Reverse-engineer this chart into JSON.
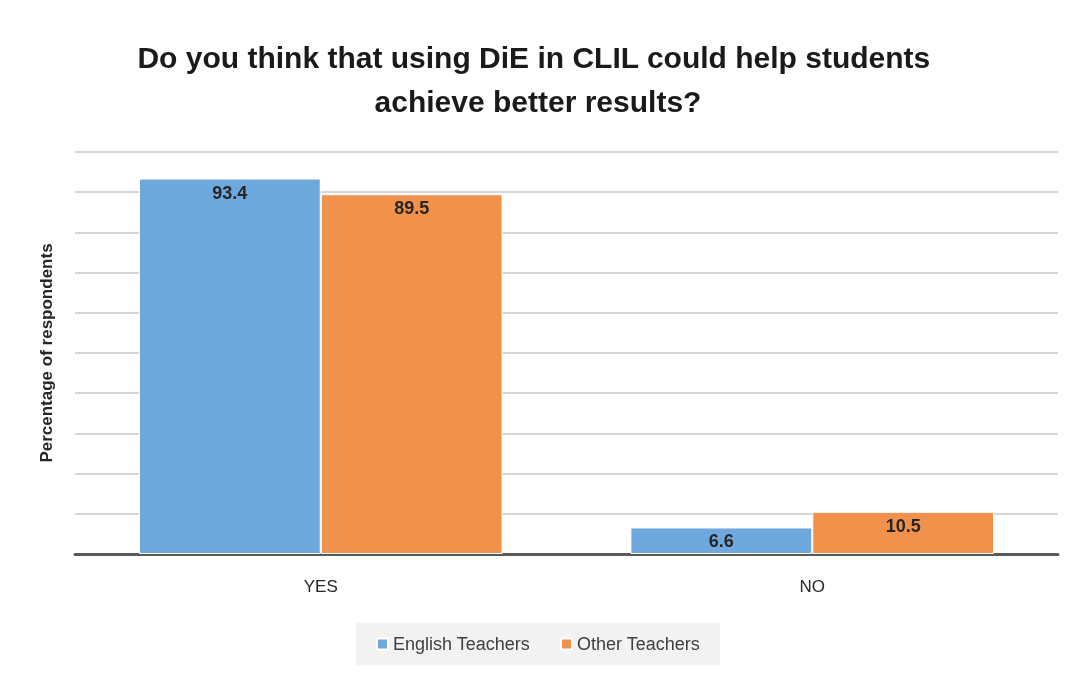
{
  "chart_data": {
    "type": "bar",
    "title": "Do you think that using DiE in CLIL could help students achieve better results?",
    "ylabel": "Percentage of respondents",
    "categories": [
      "YES",
      "NO"
    ],
    "series": [
      {
        "name": "English Teachers",
        "color": "#6fa8dc",
        "values": [
          93.4,
          6.6
        ]
      },
      {
        "name": "Other Teachers",
        "color": "#f0914c",
        "values": [
          89.5,
          10.5
        ]
      }
    ],
    "ylim": [
      0,
      100
    ],
    "yticks": [
      {
        "value": 0,
        "label": null
      },
      {
        "value": 10,
        "label": null
      },
      {
        "value": 20,
        "label": null
      },
      {
        "value": 30,
        "label": null
      },
      {
        "value": 40,
        "label": null
      },
      {
        "value": 50,
        "label": null
      },
      {
        "value": 60,
        "label": null
      },
      {
        "value": 70,
        "label": null
      },
      {
        "value": 80,
        "label": null
      },
      {
        "value": 90,
        "label": null
      },
      {
        "value": 100,
        "label": null
      }
    ],
    "tick_labels": "x",
    "grid": "y",
    "legend": "bottom",
    "data_labels": true
  }
}
